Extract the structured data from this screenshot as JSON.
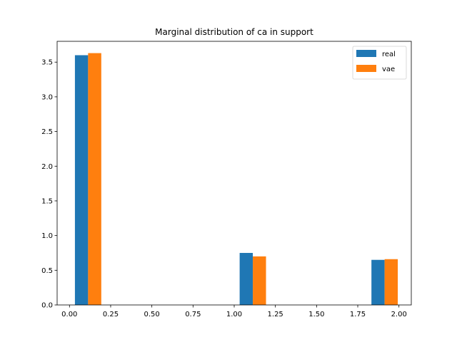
{
  "chart_data": {
    "type": "bar",
    "title": "Marginal distribution of ca in support",
    "xlabel": "",
    "ylabel": "",
    "xlim": [
      -0.075,
      2.075
    ],
    "ylim": [
      0,
      3.8
    ],
    "xticks": [
      "0.00",
      "0.25",
      "0.50",
      "0.75",
      "1.00",
      "1.25",
      "1.50",
      "1.75",
      "2.00"
    ],
    "yticks": [
      "0.0",
      "0.5",
      "1.0",
      "1.5",
      "2.0",
      "2.5",
      "3.0",
      "3.5"
    ],
    "grid": false,
    "legend_position": "top-right",
    "bins": [
      {
        "x0": 0.033,
        "x1": 0.113
      },
      {
        "x0": 1.033,
        "x1": 1.113
      },
      {
        "x0": 1.833,
        "x1": 1.913
      }
    ],
    "series": [
      {
        "name": "real",
        "color": "#1f77b4",
        "values": [
          3.6,
          0.75,
          0.65
        ]
      },
      {
        "name": "vae",
        "color": "#ff7f0e",
        "values": [
          3.63,
          0.7,
          0.66
        ]
      }
    ]
  }
}
